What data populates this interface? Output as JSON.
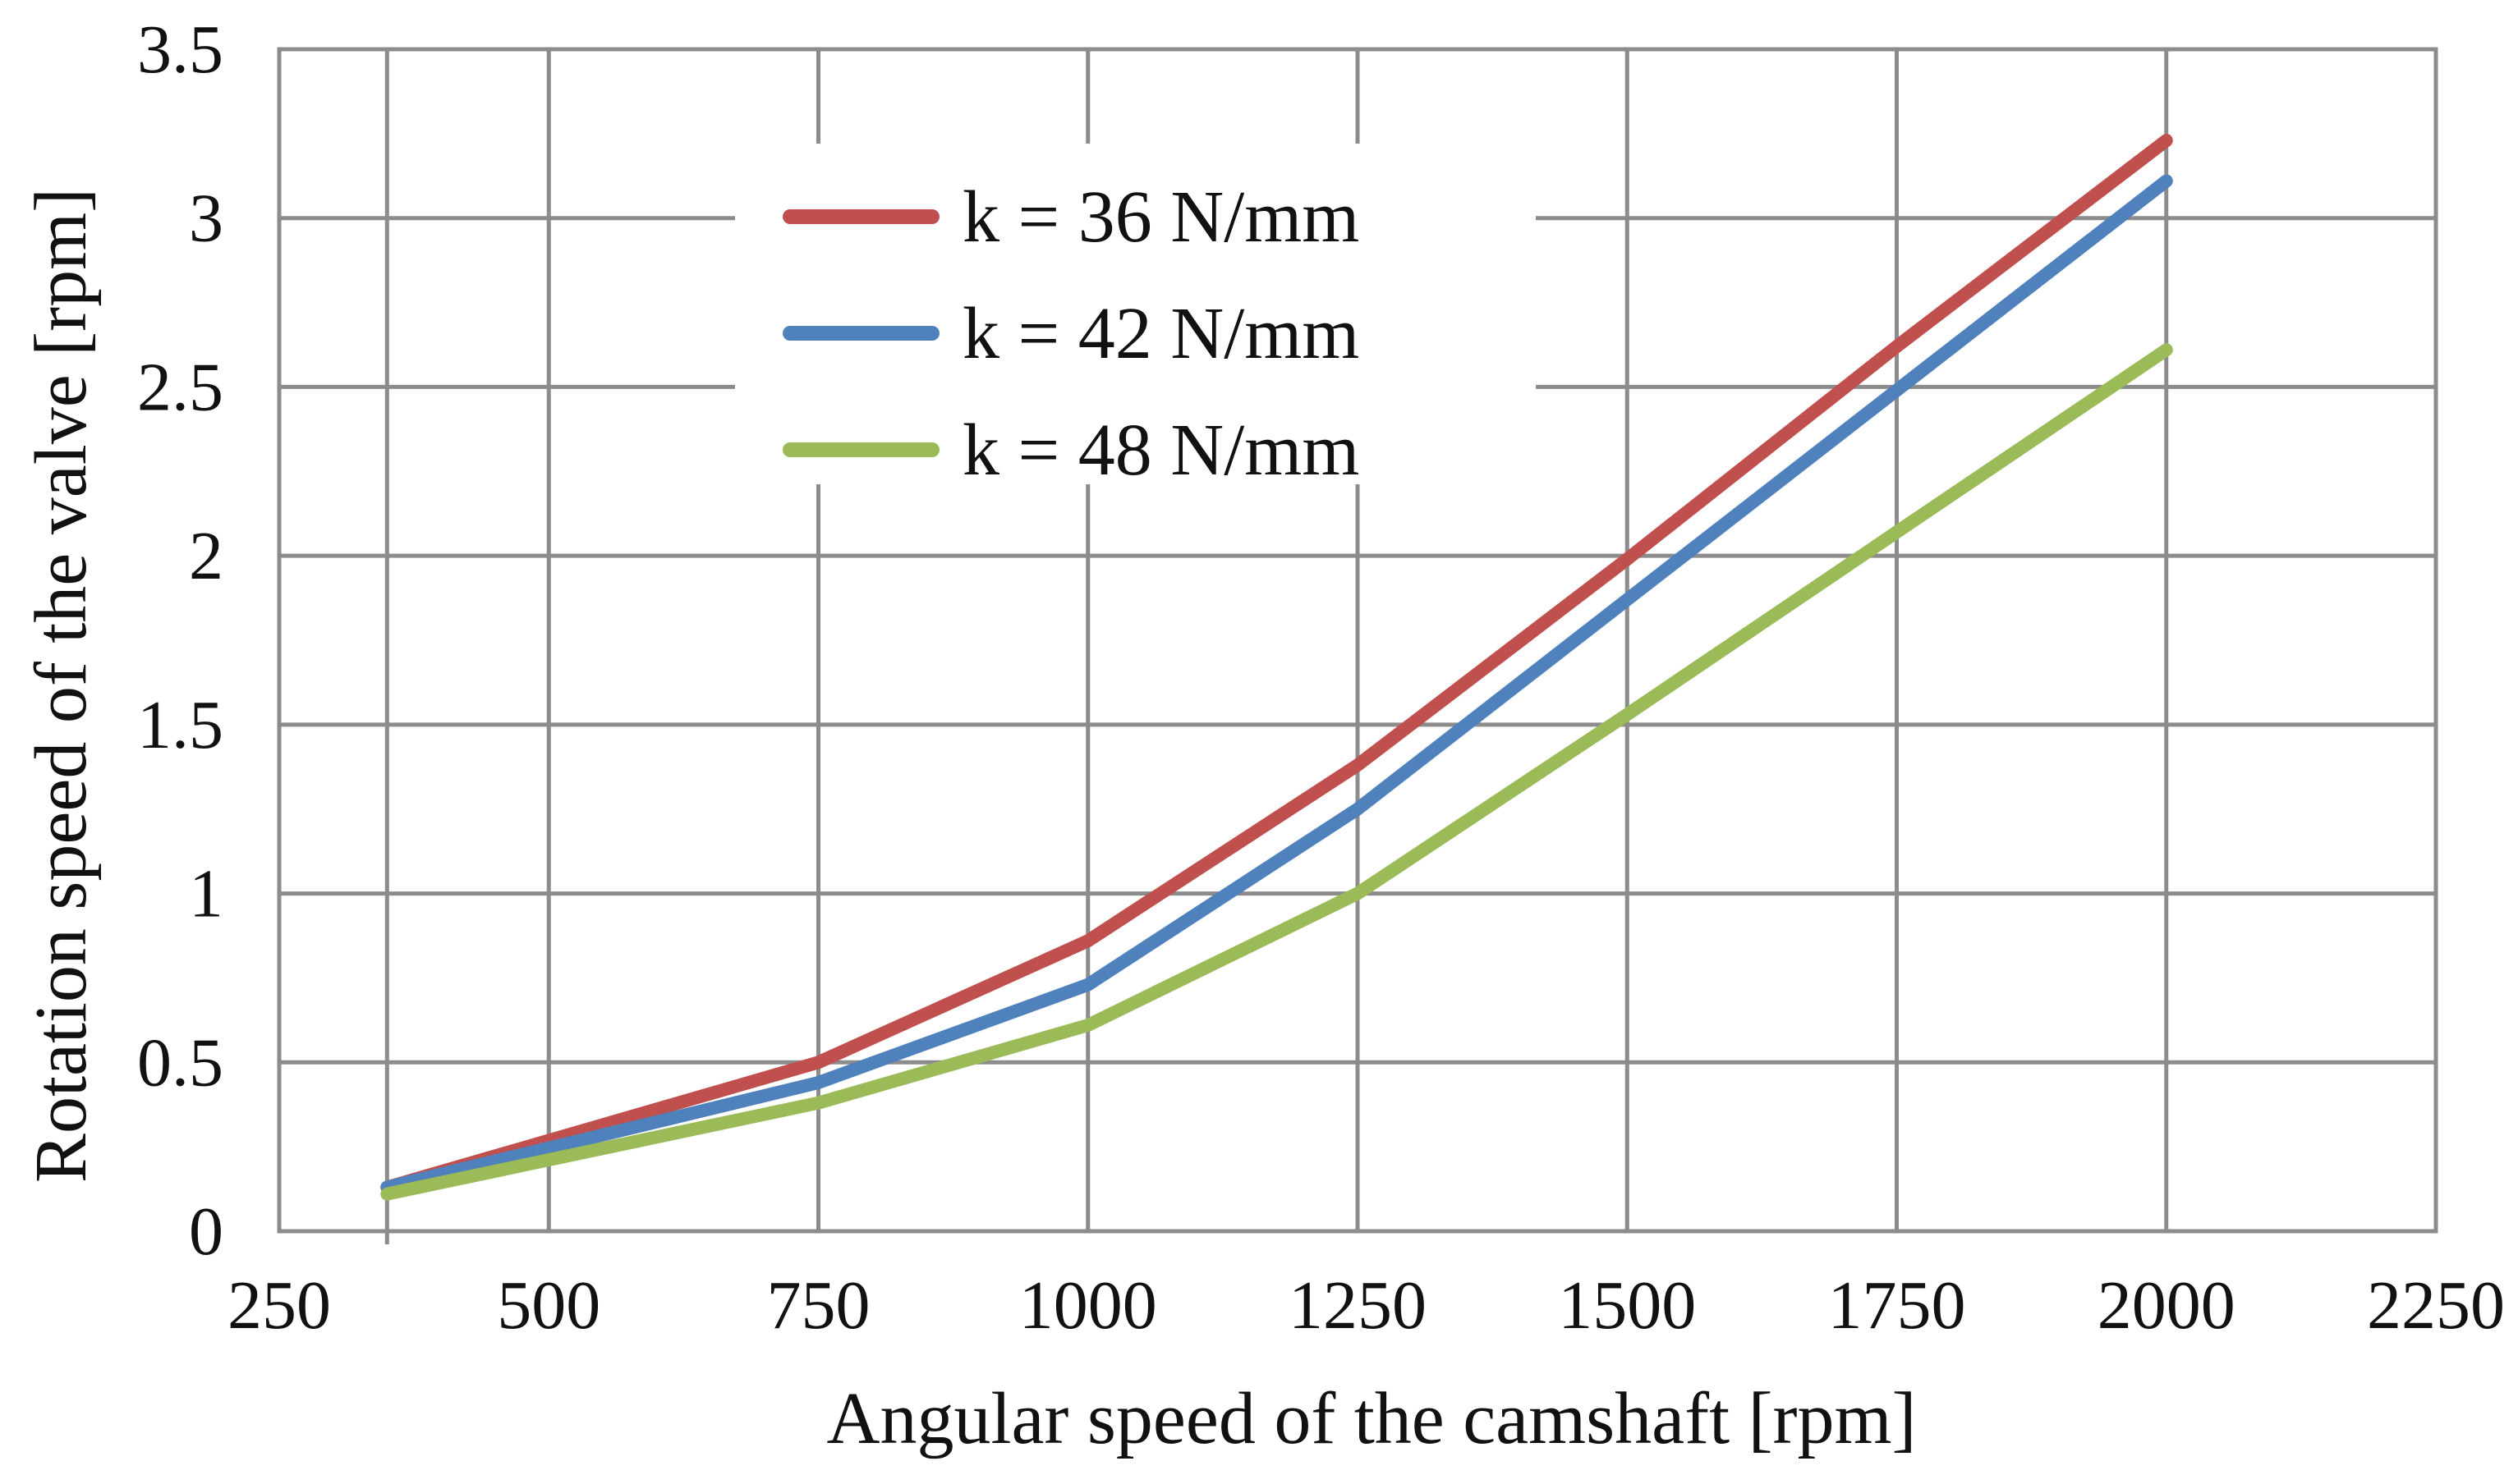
{
  "chart_data": {
    "type": "line",
    "title": "",
    "xlabel": "Angular speed of the camshaft [rpm]",
    "ylabel": "Rotation speed of the valve [rpm]",
    "xlim": [
      250,
      2250
    ],
    "ylim": [
      0,
      3.5
    ],
    "x_ticks": [
      250,
      500,
      750,
      1000,
      1250,
      1500,
      1750,
      2000,
      2250
    ],
    "y_ticks": [
      0,
      0.5,
      1,
      1.5,
      2,
      2.5,
      3,
      3.5
    ],
    "x_tick_labels": [
      "250",
      "500",
      "750",
      "1000",
      "1250",
      "1500",
      "1750",
      "2000",
      "2250"
    ],
    "y_tick_labels": [
      "0",
      "0.5",
      "1",
      "1.5",
      "2",
      "2.5",
      "3",
      "3.5"
    ],
    "grid": true,
    "legend_position": "top-center",
    "x": [
      350,
      750,
      1000,
      1250,
      1500,
      1750,
      2000
    ],
    "series": [
      {
        "name": "k = 36 N/mm",
        "color": "#c0504d",
        "values": [
          0.13,
          0.5,
          0.86,
          1.38,
          1.99,
          2.62,
          3.23
        ]
      },
      {
        "name": "k = 42 N/mm",
        "color": "#4f81bd",
        "values": [
          0.13,
          0.44,
          0.73,
          1.25,
          1.87,
          2.49,
          3.11
        ]
      },
      {
        "name": "k =  48 N/mm",
        "color": "#9bbb59",
        "values": [
          0.11,
          0.38,
          0.61,
          1.0,
          1.53,
          2.07,
          2.61
        ]
      }
    ]
  }
}
